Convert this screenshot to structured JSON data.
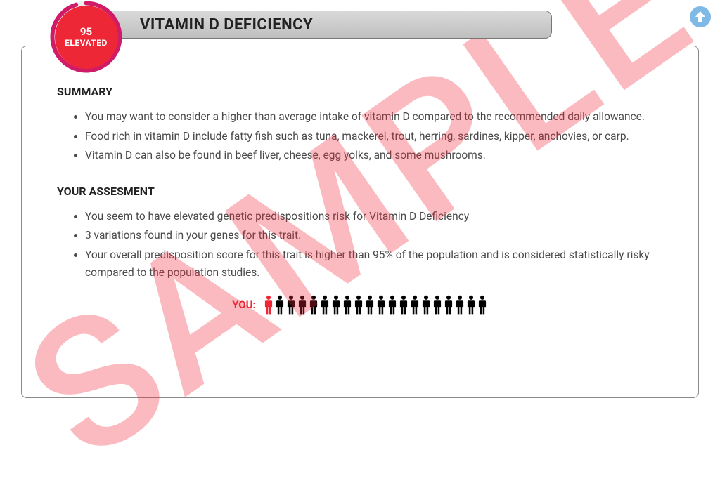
{
  "colors": {
    "badge_fill": "#ee2737",
    "badge_ring": "#d01b67",
    "title_text": "#222222",
    "body_text": "#4a4a4a",
    "heading_text": "#222222",
    "title_bar_start": "#d9d9d9",
    "title_bar_end": "#bfbfbf",
    "scroll_top": "#7fb9e6",
    "watermark": "rgba(238,39,55,0.32)",
    "you_label": "#ee2737",
    "person_red": "#ee2737",
    "person_black": "#000000"
  },
  "badge": {
    "score": "95",
    "status": "ELEVATED",
    "percent": 95
  },
  "title": "VITAMIN D DEFICIENCY",
  "watermark_text": "SAMPLE",
  "sections": {
    "summary": {
      "heading": "SUMMARY",
      "items": [
        "You may want to consider a higher than average intake of vitamin D compared to the recommended daily allowance.",
        "Food rich in vitamin D include fatty fish such as tuna, mackerel, trout, herring, sardines, kipper, anchovies, or carp.",
        "Vitamin D can also be found in beef liver, cheese, egg yolks, and some mushrooms."
      ]
    },
    "assessment": {
      "heading": "YOUR ASSESMENT",
      "items": [
        "You seem to have elevated genetic predispositions risk for Vitamin D Deficiency",
        "3 variations found in your genes for this trait.",
        "Your overall predisposition score for this trait is higher than 95% of the population and is considered statistically risky compared to the population studies."
      ]
    }
  },
  "you_row": {
    "label": "YOU:",
    "total_people": 20,
    "highlighted_index": 0
  }
}
